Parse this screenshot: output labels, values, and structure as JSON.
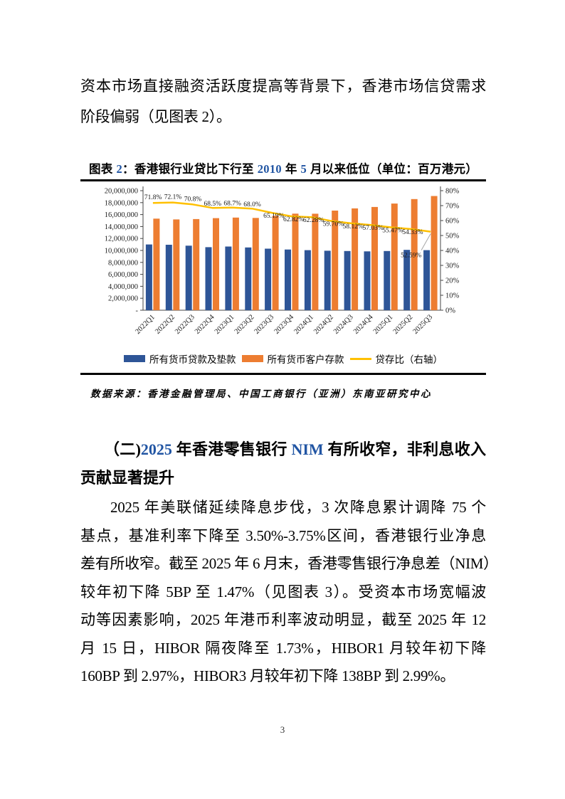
{
  "page": {
    "number": "3"
  },
  "colors": {
    "accent_blue_text": "#2155A3",
    "bar_blue": "#2E5597",
    "bar_orange": "#ED7D31",
    "line_yellow": "#FFC000",
    "last_label_red": "#E03C36",
    "leader_gray": "#A6A6A6"
  },
  "intro_paragraph": {
    "lines": [
      "资本市场直接融资活跃度提高等背景下，香港市场信贷需求",
      "阶段偏弱（见图表 2）。"
    ]
  },
  "figure": {
    "title_parts": {
      "prefix": "图表 ",
      "num1": "2",
      "mid1": "：香港银行业贷比下行至 ",
      "num2": "2010",
      "mid2": " 年 ",
      "num3": "5",
      "suffix": " 月以来低位（单位：百万港元）"
    },
    "source_note": "数据来源：香港金融管理局、中国工商银行（亚洲）东南亚研究中心",
    "legend_items": [
      {
        "label": "所有货币贷款及垫款",
        "type": "bar",
        "color": "#2E5597"
      },
      {
        "label": "所有货币客户存款",
        "type": "bar",
        "color": "#ED7D31"
      },
      {
        "label": "贷存比（右轴）",
        "type": "line",
        "color": "#FFC000"
      }
    ]
  },
  "chart_data": {
    "type": "bar",
    "title": "图表 2：香港银行业贷比下行至 2010 年 5 月以来低位（单位：百万港元）",
    "xlabel": "",
    "ylabel": "百万港元",
    "categories": [
      "2022Q1",
      "2022Q2",
      "2022Q3",
      "2022Q4",
      "2023Q1",
      "2023Q2",
      "2023Q3",
      "2023Q4",
      "2024Q1",
      "2024Q2",
      "2024Q3",
      "2024Q4",
      "2025Q1",
      "2025Q2",
      "2025Q3"
    ],
    "series": [
      {
        "name": "所有货币贷款及垫款",
        "type": "bar",
        "axis": "left",
        "color": "#2E5597",
        "values": [
          11000000,
          10950000,
          10800000,
          10550000,
          10650000,
          10500000,
          10300000,
          10150000,
          10050000,
          9950000,
          9900000,
          9850000,
          9900000,
          10100000,
          10050000
        ]
      },
      {
        "name": "所有货币客户存款",
        "type": "bar",
        "axis": "left",
        "color": "#ED7D31",
        "values": [
          15320000,
          15190000,
          15250000,
          15400000,
          15500000,
          15440000,
          15800000,
          16160000,
          16140000,
          16670000,
          17030000,
          17270000,
          17850000,
          18590000,
          19110000
        ]
      },
      {
        "name": "贷存比（右轴）",
        "type": "line",
        "axis": "right",
        "color": "#FFC000",
        "values": [
          71.8,
          72.1,
          70.8,
          68.5,
          68.7,
          68.0,
          65.19,
          62.82,
          62.28,
          59.7,
          58.12,
          57.03,
          55.47,
          54.33,
          52.59
        ],
        "labels": [
          "71.8%",
          "72.1%",
          "70.8%",
          "68.5%",
          "68.7%",
          "68.0%",
          "65.19%",
          "62.82%",
          "62.28%",
          "59.70%",
          "58.12%",
          "57.03%",
          "55.47%",
          "54.33%",
          "52.59%"
        ],
        "last_label_color": "#E03C36"
      }
    ],
    "left_axis": {
      "min": 0,
      "max": 20000000,
      "step": 2000000,
      "zero_label": "-"
    },
    "right_axis": {
      "min": 0,
      "max": 80,
      "step": 10,
      "unit": "%"
    },
    "grid": false,
    "legend_position": "bottom"
  },
  "section_heading": {
    "parts": {
      "p1": "（二)",
      "num": "2025",
      "p2": " 年香港零售银行 ",
      "nim": "NIM",
      "p3": " 有所收窄，非利息收入"
    },
    "line2": "贡献显著提升"
  },
  "body_paragraph": {
    "lines": [
      "2025 年美联储延续降息步伐，3 次降息累计调降 75 个",
      "基点，基准利率下降至 3.50%-3.75%区间，香港银行业净息",
      "差有所收窄。截至 2025 年 6 月末，香港零售银行净息差（NIM）",
      "较年初下降 5BP 至 1.47%（见图表 3）。受资本市场宽幅波",
      "动等因素影响，2025 年港币利率波动明显，截至 2025 年 12",
      "月 15 日，HIBOR 隔夜降至 1.73%，HIBOR1 月较年初下降",
      "160BP 到 2.97%，HIBOR3 月较年初下降 138BP 到 2.99%。"
    ]
  }
}
